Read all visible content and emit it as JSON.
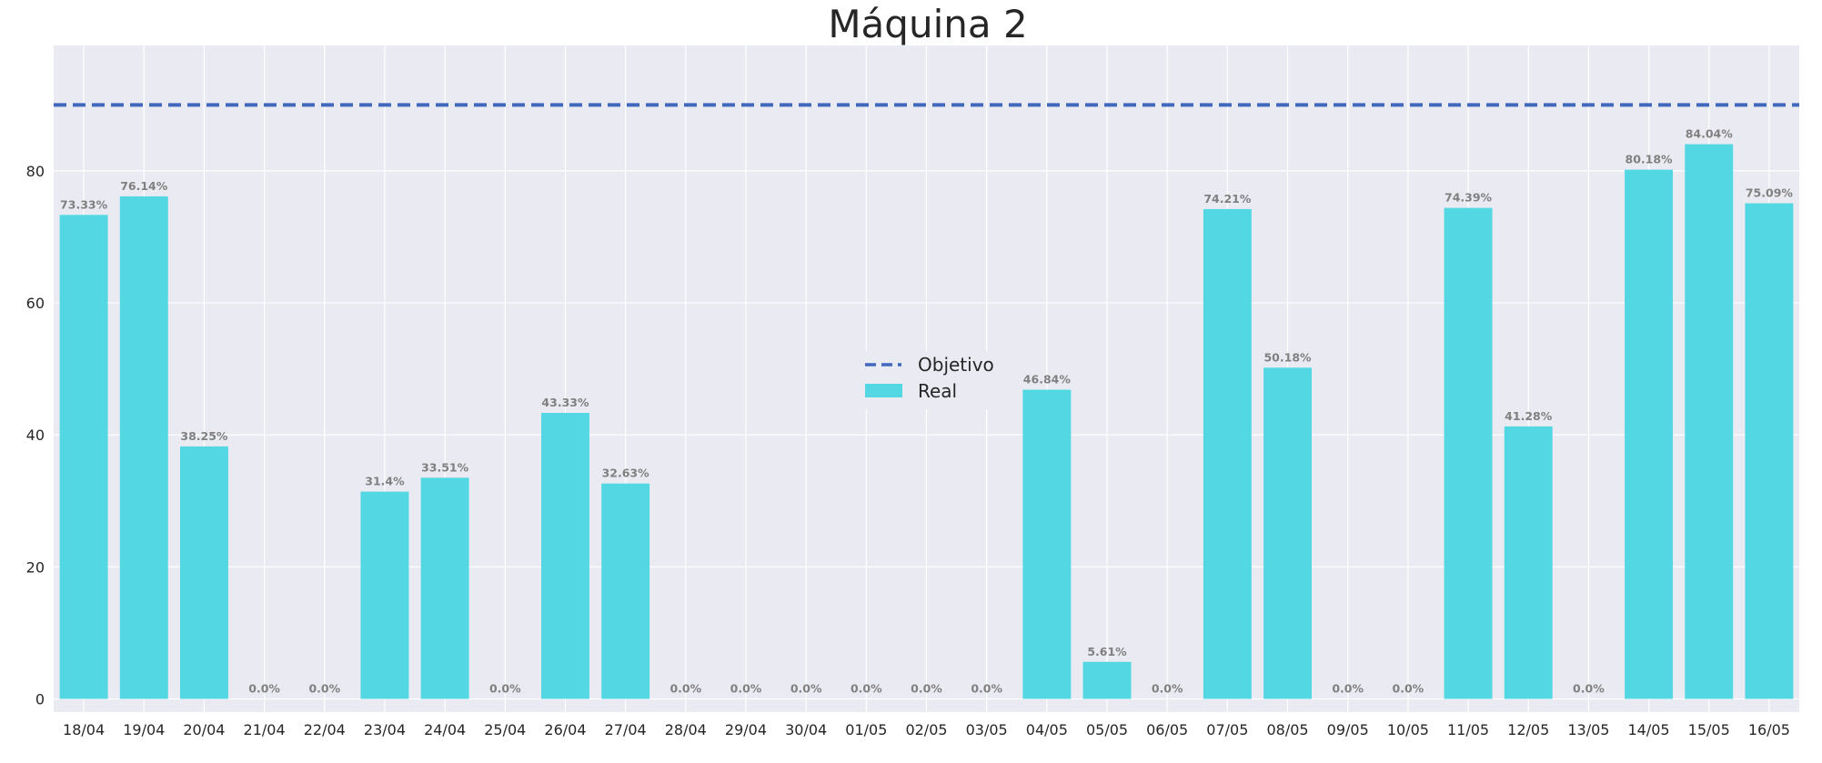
{
  "chart_data": {
    "type": "bar",
    "title": "Máquina 2",
    "xlabel": "",
    "ylabel": "",
    "ylim": [
      -2,
      99
    ],
    "yticks": [
      0,
      20,
      40,
      60,
      80
    ],
    "grid": true,
    "legend_position": "center",
    "colors": {
      "background": "#EAEAF2",
      "bar": "#53D8E3",
      "target": "#4069BD",
      "grid": "#FFFFFF",
      "data_label": "#808080"
    },
    "categories": [
      "18/04",
      "19/04",
      "20/04",
      "21/04",
      "22/04",
      "23/04",
      "24/04",
      "25/04",
      "26/04",
      "27/04",
      "28/04",
      "29/04",
      "30/04",
      "01/05",
      "02/05",
      "03/05",
      "04/05",
      "05/05",
      "06/05",
      "07/05",
      "08/05",
      "09/05",
      "10/05",
      "11/05",
      "12/05",
      "13/05",
      "14/05",
      "15/05",
      "16/05"
    ],
    "series": [
      {
        "name": "Real",
        "kind": "bar",
        "values": [
          73.33,
          76.14,
          38.25,
          0,
          0,
          31.4,
          33.51,
          0,
          43.33,
          32.63,
          0,
          0,
          0,
          0,
          0,
          0,
          46.84,
          5.61,
          0,
          74.21,
          50.18,
          0,
          0,
          74.39,
          41.28,
          0,
          80.18,
          84.04,
          75.09
        ],
        "labels": [
          "73.33%",
          "76.14%",
          "38.25%",
          "0.0%",
          "0.0%",
          "31.4%",
          "33.51%",
          "0.0%",
          "43.33%",
          "32.63%",
          "0.0%",
          "0.0%",
          "0.0%",
          "0.0%",
          "0.0%",
          "0.0%",
          "46.84%",
          "5.61%",
          "0.0%",
          "74.21%",
          "50.18%",
          "0.0%",
          "0.0%",
          "74.39%",
          "41.28%",
          "0.0%",
          "80.18%",
          "84.04%",
          "75.09%"
        ]
      },
      {
        "name": "Objetivo",
        "kind": "line",
        "value": 90
      }
    ],
    "legend": [
      "Objetivo",
      "Real"
    ]
  }
}
